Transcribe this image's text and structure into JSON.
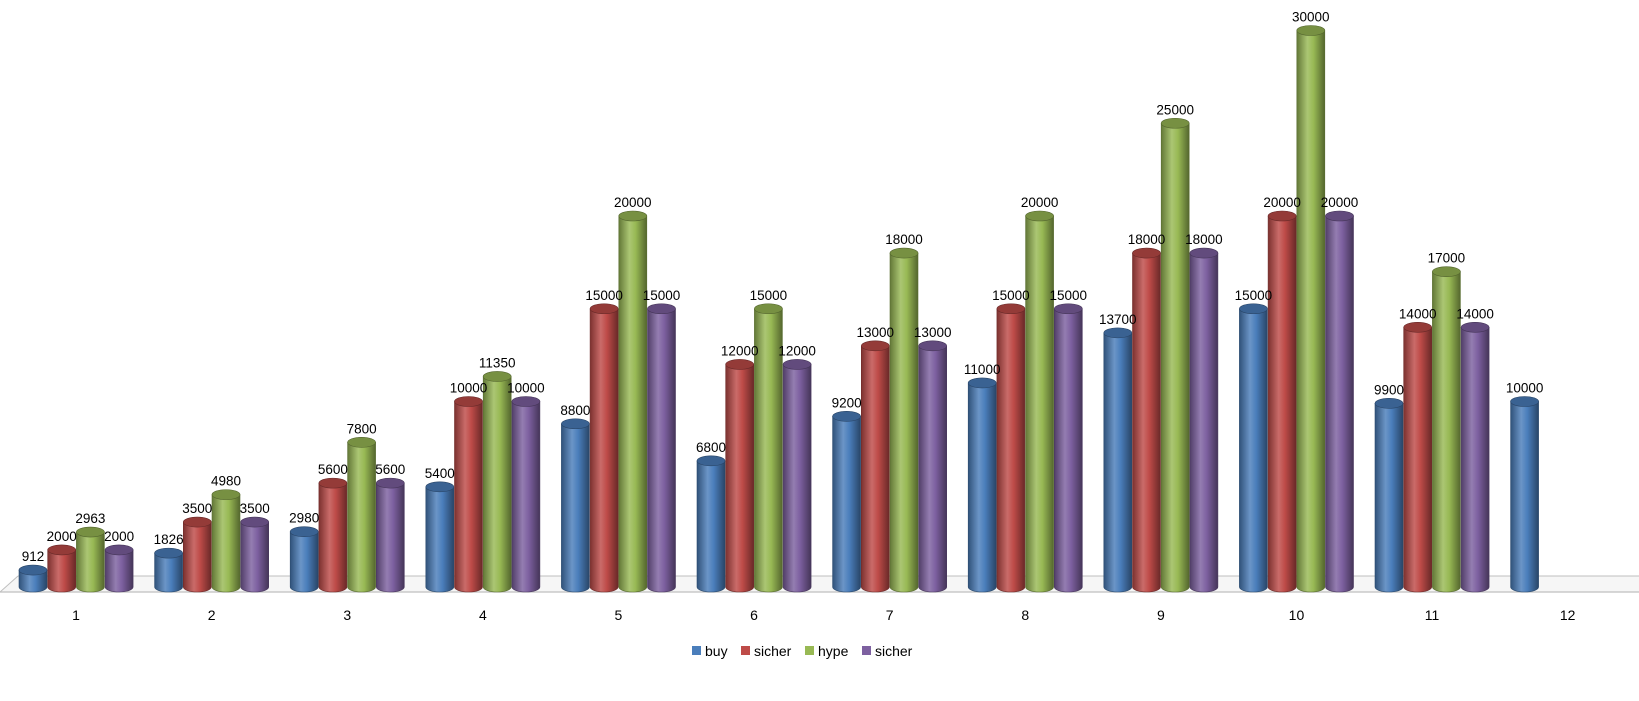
{
  "chart_data": {
    "type": "bar",
    "style": "3d-cylinder",
    "title": "",
    "xlabel": "",
    "ylabel": "",
    "grid": false,
    "legend_position": "bottom",
    "categories": [
      "1",
      "2",
      "3",
      "4",
      "5",
      "6",
      "7",
      "8",
      "9",
      "10",
      "11",
      "12"
    ],
    "series": [
      {
        "name": "buy",
        "color": "#4a7ebb",
        "values": [
          912,
          1826,
          2980,
          5400,
          8800,
          6800,
          9200,
          11000,
          13700,
          15000,
          9900,
          10000
        ]
      },
      {
        "name": "sicher",
        "color": "#be4b48",
        "values": [
          2000,
          3500,
          5600,
          10000,
          15000,
          12000,
          13000,
          15000,
          18000,
          20000,
          14000,
          null
        ]
      },
      {
        "name": "hype",
        "color": "#98b954",
        "values": [
          2963,
          4980,
          7800,
          11350,
          20000,
          15000,
          18000,
          20000,
          25000,
          30000,
          17000,
          null
        ]
      },
      {
        "name": "sicher",
        "color": "#7d60a0",
        "values": [
          2000,
          3500,
          5600,
          10000,
          15000,
          12000,
          13000,
          15000,
          18000,
          20000,
          14000,
          null
        ]
      }
    ]
  }
}
